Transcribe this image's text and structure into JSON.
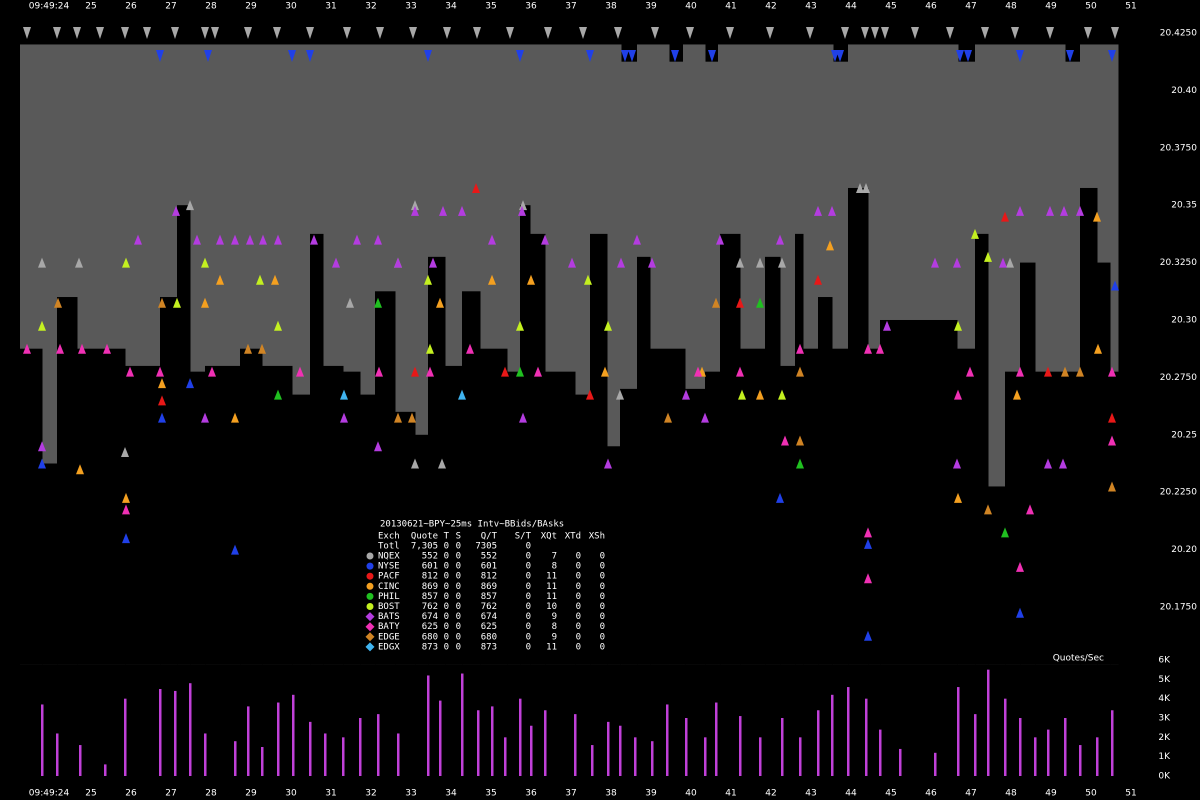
{
  "chart_data": [
    {
      "type": "quotes",
      "time_label": "09:49:24",
      "xlim": [
        22.725,
        52.725
      ],
      "xticks": [
        25,
        26,
        27,
        28,
        29,
        30,
        31,
        32,
        33,
        34,
        35,
        36,
        37,
        38,
        39,
        40,
        41,
        42,
        43,
        44,
        45,
        46,
        47,
        48,
        49,
        50,
        51
      ],
      "ylim": [
        20.15,
        20.43
      ],
      "yticks": [
        {
          "value": 20.425,
          "label": "20.4250"
        },
        {
          "value": 20.4,
          "label": "20.40"
        },
        {
          "value": 20.375,
          "label": "20.3750"
        },
        20.35,
        {
          "value": 20.325,
          "label": "20.3250"
        },
        {
          "value": 20.3,
          "label": "20.30"
        },
        {
          "value": 20.275,
          "label": "20.2750"
        },
        20.25,
        {
          "value": 20.225,
          "label": "20.2250"
        },
        {
          "value": 20.2,
          "label": "20.20"
        },
        {
          "value": 20.175,
          "label": "20.1750"
        }
      ],
      "x_end": 50.675,
      "ask": {
        "color": "#595959",
        "x": [
          23.225,
          38.25,
          38.65,
          39.45,
          39.8,
          40.35,
          40.675,
          43.55,
          43.925,
          46.675,
          47.1,
          49.35,
          49.725
        ],
        "values": [
          20.42,
          20.4125,
          20.42,
          20.4125,
          20.42,
          20.4125,
          20.42,
          20.4125,
          20.42,
          20.4125,
          20.42,
          20.4125,
          20.42
        ]
      },
      "bid": {
        "color": "#000000",
        "x": [
          23.225,
          23.775,
          24.15,
          24.65,
          25.85,
          26.725,
          27.15,
          27.475,
          27.85,
          28.725,
          29.275,
          30.025,
          30.475,
          30.8,
          31.3,
          31.725,
          32.1,
          32.6,
          33.1,
          33.425,
          33.85,
          34.275,
          34.725,
          35.4,
          35.725,
          35.975,
          36.35,
          37.1,
          37.475,
          37.9,
          38.225,
          38.65,
          38.975,
          39.85,
          40.35,
          40.725,
          41.225,
          41.85,
          42.225,
          42.6,
          42.8,
          43.175,
          43.525,
          43.925,
          44.425,
          44.725,
          46.65,
          47.1,
          47.425,
          47.85,
          48.225,
          48.6,
          49.725,
          50.15,
          50.475
        ],
        "values": [
          20.2875,
          20.2375,
          20.31,
          20.2875,
          20.28,
          20.31,
          20.35,
          20.2775,
          20.28,
          20.2875,
          20.28,
          20.2675,
          20.3375,
          20.28,
          20.2775,
          20.2675,
          20.3125,
          20.26,
          20.25,
          20.3275,
          20.28,
          20.3125,
          20.2875,
          20.2775,
          20.35,
          20.3375,
          20.2775,
          20.2675,
          20.3375,
          20.245,
          20.27,
          20.3275,
          20.2875,
          20.27,
          20.2775,
          20.3375,
          20.2875,
          20.3275,
          20.28,
          20.3375,
          20.2875,
          20.31,
          20.2875,
          20.3575,
          20.2875,
          20.3,
          20.2875,
          20.3375,
          20.2275,
          20.2775,
          20.325,
          20.2775,
          20.3575,
          20.325,
          20.2775
        ]
      },
      "series": [
        {
          "name": "NQEX",
          "color": "#a8a8a8",
          "x": [
            23.775,
            24.7,
            25.85,
            27.475,
            31.475,
            33.1,
            33.1,
            33.775,
            35.8,
            32.675,
            38.225,
            41.225,
            41.725,
            42.275,
            44.225,
            44.375,
            47.975
          ],
          "values": [
            20.325,
            20.325,
            20.2425,
            20.35,
            20.3075,
            20.35,
            20.2375,
            20.2375,
            20.35,
            20.325,
            20.2675,
            20.325,
            20.325,
            20.325,
            20.3575,
            20.3575,
            20.325
          ],
          "ask_x": [
            23.4,
            24.15,
            24.65,
            25.225,
            25.85,
            26.4,
            27.1,
            27.85,
            28.1,
            28.925,
            29.65,
            30.475,
            31.4,
            32.225,
            33.05,
            33.9,
            34.65,
            35.475,
            36.425,
            37.3,
            38.175,
            39.1,
            39.975,
            40.975,
            41.975,
            42.975,
            43.85,
            44.35,
            44.6,
            44.85,
            45.6,
            46.475,
            47.35,
            48.1,
            48.975,
            49.925,
            50.6
          ],
          "ask_values": [
            20.425,
            20.425,
            20.425,
            20.425,
            20.425,
            20.425,
            20.425,
            20.425,
            20.425,
            20.425,
            20.425,
            20.425,
            20.425,
            20.425,
            20.425,
            20.425,
            20.425,
            20.425,
            20.425,
            20.425,
            20.425,
            20.425,
            20.425,
            20.425,
            20.425,
            20.425,
            20.425,
            20.425,
            20.425,
            20.425,
            20.425,
            20.425,
            20.425,
            20.425,
            20.425,
            20.425,
            20.425
          ]
        },
        {
          "name": "NYSE",
          "color": "#2040e8",
          "x": [
            23.775,
            25.875,
            26.775,
            27.475,
            28.6,
            42.225,
            44.425,
            44.425,
            48.225,
            50.6
          ],
          "values": [
            20.2375,
            20.205,
            20.2575,
            20.2725,
            20.2,
            20.2225,
            20.2025,
            20.1625,
            20.1725,
            20.315
          ],
          "ask_x": [
            26.725,
            27.925,
            30.025,
            30.475,
            33.425,
            35.725,
            37.475,
            38.35,
            38.525,
            39.6,
            40.525,
            43.6,
            43.725,
            46.725,
            46.925,
            48.225,
            49.475,
            50.525
          ],
          "ask_values": [
            20.415,
            20.415,
            20.415,
            20.415,
            20.415,
            20.415,
            20.415,
            20.415,
            20.415,
            20.415,
            20.415,
            20.415,
            20.415,
            20.415,
            20.415,
            20.415,
            20.415,
            20.415
          ]
        },
        {
          "name": "PACF",
          "color": "#e81818",
          "x": [
            34.625,
            26.775,
            33.1,
            35.35,
            37.475,
            41.225,
            43.175,
            47.85,
            48.925,
            50.525
          ],
          "values": [
            20.3575,
            20.265,
            20.2775,
            20.2775,
            20.2675,
            20.3075,
            20.3175,
            20.345,
            20.2775,
            20.2575
          ]
        },
        {
          "name": "CINC",
          "color": "#f4a020",
          "x": [
            24.725,
            25.875,
            26.775,
            27.85,
            28.225,
            28.6,
            29.6,
            33.725,
            35.025,
            36.0,
            37.85,
            40.275,
            41.725,
            43.475,
            46.675,
            48.15,
            50.15,
            50.175
          ],
          "values": [
            20.235,
            20.2225,
            20.2725,
            20.3075,
            20.3175,
            20.2575,
            20.3175,
            20.3075,
            20.3175,
            20.3175,
            20.2775,
            20.2775,
            20.2675,
            20.3325,
            20.2225,
            20.2675,
            20.345,
            20.2875
          ]
        },
        {
          "name": "PHIL",
          "color": "#20c020",
          "x": [
            29.675,
            32.175,
            35.725,
            41.725,
            42.725,
            47.85
          ],
          "values": [
            20.2675,
            20.3075,
            20.2775,
            20.3075,
            20.2375,
            20.2075
          ]
        },
        {
          "name": "BOST",
          "color": "#c4f020",
          "x": [
            23.775,
            25.875,
            27.15,
            27.85,
            29.225,
            29.675,
            33.425,
            33.475,
            35.725,
            37.425,
            37.925,
            41.275,
            42.275,
            47.1,
            47.425,
            46.675
          ],
          "values": [
            20.2975,
            20.325,
            20.3075,
            20.325,
            20.3175,
            20.2975,
            20.3175,
            20.2875,
            20.2975,
            20.3175,
            20.2975,
            20.2675,
            20.2675,
            20.3375,
            20.3275,
            20.2975
          ]
        },
        {
          "name": "BATS",
          "color": "#b43ce0",
          "x": [
            23.775,
            26.175,
            27.125,
            27.65,
            28.225,
            28.6,
            28.975,
            29.3,
            29.675,
            30.575,
            31.125,
            31.65,
            32.175,
            32.675,
            33.1,
            33.55,
            33.8,
            34.275,
            35.025,
            35.775,
            36.35,
            37.025,
            38.25,
            38.65,
            39.025,
            39.875,
            40.725,
            42.225,
            43.175,
            43.525,
            44.9,
            46.1,
            46.65,
            47.8,
            48.225,
            48.975,
            49.325,
            49.725,
            48.925,
            49.3,
            37.925,
            27.85,
            31.325,
            32.175,
            35.8,
            40.35,
            46.65
          ],
          "values": [
            20.245,
            20.335,
            20.3475,
            20.335,
            20.335,
            20.335,
            20.335,
            20.335,
            20.335,
            20.335,
            20.325,
            20.335,
            20.335,
            20.325,
            20.3475,
            20.325,
            20.3475,
            20.3475,
            20.335,
            20.3475,
            20.335,
            20.325,
            20.325,
            20.335,
            20.325,
            20.2675,
            20.335,
            20.335,
            20.3475,
            20.3475,
            20.2975,
            20.325,
            20.325,
            20.325,
            20.3475,
            20.3475,
            20.3475,
            20.3475,
            20.2375,
            20.2375,
            20.2375,
            20.2575,
            20.2575,
            20.245,
            20.2575,
            20.2575,
            20.2375
          ]
        },
        {
          "name": "BATY",
          "color": "#f030b4",
          "x": [
            23.4,
            24.225,
            24.775,
            25.4,
            25.975,
            26.725,
            28.025,
            30.225,
            32.2,
            33.475,
            34.475,
            36.175,
            40.175,
            41.225,
            42.35,
            42.725,
            44.425,
            44.725,
            46.675,
            46.975,
            48.225,
            48.475,
            50.525,
            25.875,
            44.425,
            44.425,
            48.225,
            50.525
          ],
          "values": [
            20.2875,
            20.2875,
            20.2875,
            20.2875,
            20.2775,
            20.2775,
            20.2775,
            20.2775,
            20.2775,
            20.2775,
            20.2875,
            20.2775,
            20.2775,
            20.2775,
            20.2475,
            20.2875,
            20.2875,
            20.2875,
            20.2675,
            20.2775,
            20.2775,
            20.2175,
            20.2475,
            20.2175,
            20.2075,
            20.1875,
            20.1925,
            20.2775
          ]
        },
        {
          "name": "EDGE",
          "color": "#d08424",
          "x": [
            24.175,
            26.775,
            28.925,
            29.275,
            32.675,
            33.025,
            39.425,
            40.625,
            42.725,
            42.725,
            49.35,
            50.525,
            47.425,
            49.725
          ],
          "values": [
            20.3075,
            20.3075,
            20.2875,
            20.2875,
            20.2575,
            20.2575,
            20.2575,
            20.3075,
            20.2775,
            20.2475,
            20.2775,
            20.2275,
            20.2175,
            20.2775
          ]
        },
        {
          "name": "EDGX",
          "color": "#40b4f0",
          "x": [
            31.325,
            34.275
          ],
          "values": [
            20.2675,
            20.2675
          ]
        }
      ]
    },
    {
      "type": "bar",
      "title": "Quotes/Sec",
      "color": "#c040d8",
      "ylim": [
        0,
        6000
      ],
      "yticks": [
        {
          "value": 0,
          "label": "0K"
        },
        {
          "value": 1000,
          "label": "1K"
        },
        {
          "value": 2000,
          "label": "2K"
        },
        {
          "value": 3000,
          "label": "3K"
        },
        {
          "value": 4000,
          "label": "4K"
        },
        {
          "value": 5000,
          "label": "5K"
        },
        {
          "value": 6000,
          "label": "6K"
        }
      ],
      "x": [
        23.775,
        24.15,
        24.725,
        25.35,
        25.85,
        26.725,
        27.1,
        27.475,
        27.85,
        28.6,
        28.925,
        29.275,
        29.675,
        30.05,
        30.475,
        30.85,
        31.3,
        31.725,
        32.175,
        32.675,
        33.425,
        33.725,
        34.275,
        34.675,
        35.025,
        35.35,
        35.725,
        36.0,
        36.35,
        37.1,
        37.525,
        37.925,
        38.225,
        38.6,
        39.025,
        39.4,
        39.875,
        40.35,
        40.625,
        41.225,
        41.725,
        42.275,
        42.725,
        43.175,
        43.525,
        43.925,
        44.375,
        44.725,
        45.225,
        46.1,
        46.675,
        47.1,
        47.425,
        47.85,
        48.225,
        48.6,
        48.925,
        49.35,
        49.725,
        50.15,
        50.525
      ],
      "values": [
        3700,
        2200,
        1600,
        600,
        4000,
        4500,
        4400,
        4800,
        2200,
        1800,
        3600,
        1500,
        3800,
        4200,
        2800,
        2200,
        2000,
        3000,
        3200,
        2200,
        5200,
        3900,
        5300,
        3400,
        3600,
        2000,
        4000,
        2600,
        3400,
        3200,
        1600,
        2800,
        2600,
        2000,
        1800,
        3700,
        3000,
        2000,
        3800,
        3100,
        2000,
        3000,
        2000,
        3400,
        4200,
        4600,
        4000,
        2400,
        1400,
        1200,
        4600,
        3200,
        5500,
        4000,
        3000,
        2000,
        2400,
        3000,
        1600,
        2000,
        3400
      ]
    }
  ],
  "legend_table": {
    "title": "20130621~BPY~25ms Intv~BBids/BAsks",
    "header": [
      "Exch",
      "Quote",
      "T",
      "S",
      "Q/T",
      "S/T",
      "XQt",
      "XTd",
      "XSh"
    ],
    "total": [
      "Totl",
      "7,305",
      "0",
      "0",
      "7305",
      "0"
    ],
    "rows": [
      [
        "552",
        "0",
        "0",
        "552",
        "0",
        "7",
        "0",
        "0"
      ],
      [
        "601",
        "0",
        "0",
        "601",
        "0",
        "8",
        "0",
        "0"
      ],
      [
        "812",
        "0",
        "0",
        "812",
        "0",
        "11",
        "0",
        "0"
      ],
      [
        "869",
        "0",
        "0",
        "869",
        "0",
        "11",
        "0",
        "0"
      ],
      [
        "857",
        "0",
        "0",
        "857",
        "0",
        "11",
        "0",
        "0"
      ],
      [
        "762",
        "0",
        "0",
        "762",
        "0",
        "10",
        "0",
        "0"
      ],
      [
        "674",
        "0",
        "0",
        "674",
        "0",
        "9",
        "0",
        "0"
      ],
      [
        "625",
        "0",
        "0",
        "625",
        "0",
        "8",
        "0",
        "0"
      ],
      [
        "680",
        "0",
        "0",
        "680",
        "0",
        "9",
        "0",
        "0"
      ],
      [
        "873",
        "0",
        "0",
        "873",
        "0",
        "11",
        "0",
        "0"
      ]
    ]
  }
}
